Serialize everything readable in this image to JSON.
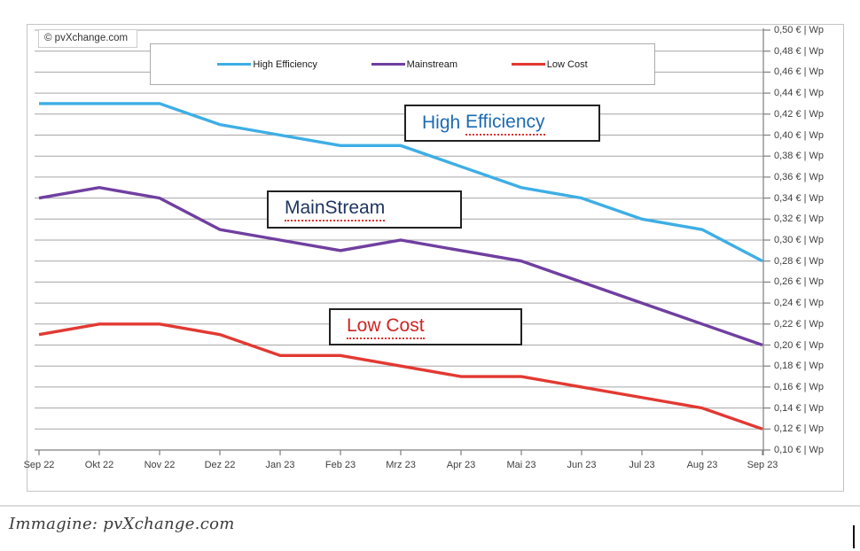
{
  "chart": {
    "copyright": "© pvXchange.com",
    "legend": [
      {
        "label": "High Efficiency",
        "color": "#3EAEE5"
      },
      {
        "label": "Mainstream",
        "color": "#703FA0"
      },
      {
        "label": "Low Cost",
        "color": "#E23932"
      }
    ],
    "annotations": {
      "high_efficiency": {
        "plain": "High ",
        "underlined": "Efficiency",
        "color": "#1C6BB2"
      },
      "mainstream": {
        "plain": "",
        "underlined": "MainStream",
        "color": "#1F3560"
      },
      "low_cost": {
        "plain": "",
        "underlined": "Low Cost",
        "color": "#CF2422"
      }
    }
  },
  "caption": {
    "text": "Immagine: pvXchange.com"
  },
  "chart_data": {
    "type": "line",
    "categories": [
      "Sep 22",
      "Okt 22",
      "Nov 22",
      "Dez 22",
      "Jan 23",
      "Feb 23",
      "Mrz 23",
      "Apr 23",
      "Mai 23",
      "Jun 23",
      "Jul 23",
      "Aug 23",
      "Sep 23"
    ],
    "series": [
      {
        "name": "High Efficiency",
        "color": "#3EAEE5",
        "values": [
          0.43,
          0.43,
          0.43,
          0.41,
          0.4,
          0.39,
          0.39,
          0.37,
          0.35,
          0.34,
          0.32,
          0.31,
          0.28
        ]
      },
      {
        "name": "Mainstream",
        "color": "#703FA0",
        "values": [
          0.34,
          0.35,
          0.34,
          0.31,
          0.3,
          0.29,
          0.3,
          0.29,
          0.28,
          0.26,
          0.24,
          0.22,
          0.2
        ]
      },
      {
        "name": "Low Cost",
        "color": "#E23932",
        "values": [
          0.21,
          0.22,
          0.22,
          0.21,
          0.19,
          0.19,
          0.18,
          0.17,
          0.17,
          0.16,
          0.15,
          0.14,
          0.12
        ]
      }
    ],
    "xlabel": "",
    "ylabel": "€ | Wp",
    "ylim": [
      0.1,
      0.5
    ],
    "y_step": 0.02,
    "y_tick_labels": [
      "0,50 € | Wp",
      "0,48 € | Wp",
      "0,46 € | Wp",
      "0,44 € | Wp",
      "0,42 € | Wp",
      "0,40 € | Wp",
      "0,38 € | Wp",
      "0,36 € | Wp",
      "0,34 € | Wp",
      "0,32 € | Wp",
      "0,30 € | Wp",
      "0,28 € | Wp",
      "0,26 € | Wp",
      "0,24 € | Wp",
      "0,22 € | Wp",
      "0,20 € | Wp",
      "0,18 € | Wp",
      "0,16 € | Wp",
      "0,14 € | Wp",
      "0,12 € | Wp",
      "0,10 € | Wp"
    ],
    "grid": true,
    "legend_position": "top"
  }
}
